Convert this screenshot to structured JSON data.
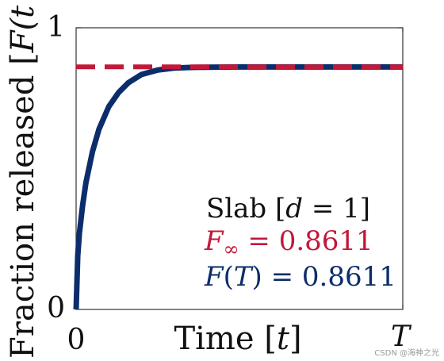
{
  "chart_data": {
    "type": "line",
    "xlabel_text": "Time ",
    "xlabel_var": "t",
    "ylabel_text": "Fraction released ",
    "ylabel_var": "F(t",
    "x_tick_labels": [
      "0",
      "T"
    ],
    "y_tick_labels": [
      "0",
      "1"
    ],
    "xlim": [
      0,
      1
    ],
    "ylim": [
      0,
      1
    ],
    "grid": false,
    "legend_position": "bottom-right",
    "series": [
      {
        "name": "F(T) = 0.8611",
        "style": "solid",
        "color": "#0b2d6b",
        "x": [
          0,
          0.005,
          0.01,
          0.02,
          0.03,
          0.05,
          0.07,
          0.1,
          0.13,
          0.16,
          0.2,
          0.25,
          0.3,
          0.35,
          0.4,
          0.5,
          0.6,
          0.7,
          0.8,
          0.9,
          1.0
        ],
        "y": [
          0,
          0.19,
          0.27,
          0.37,
          0.45,
          0.56,
          0.64,
          0.72,
          0.77,
          0.805,
          0.834,
          0.85,
          0.857,
          0.859,
          0.86,
          0.861,
          0.861,
          0.861,
          0.861,
          0.861,
          0.861
        ]
      },
      {
        "name": "F∞ = 0.8611",
        "style": "dashed",
        "color": "#c2183a",
        "x": [
          0,
          1
        ],
        "y": [
          0.8611,
          0.8611
        ]
      }
    ],
    "legend": {
      "title_text": "Slab ",
      "title_var": "d",
      "title_eq": " = 1",
      "f_inf_var": "F",
      "f_inf_sub": "∞",
      "f_inf_value": " = 0.8611",
      "f_T_var": "F",
      "f_T_arg": "T",
      "f_T_value": " = 0.8611"
    }
  },
  "watermark": "CSDN @海神之光"
}
